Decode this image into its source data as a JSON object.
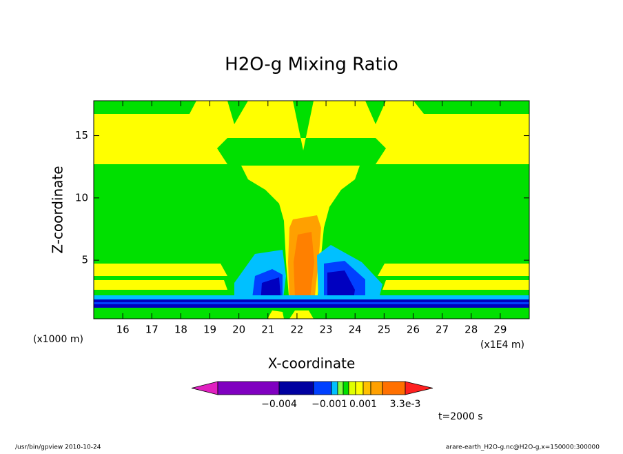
{
  "chart_data": {
    "type": "contour",
    "title": "H2O-g Mixing Ratio",
    "x_label": "X-coordinate",
    "y_label": "Z-coordinate",
    "x_unit": "(x1E4 m)",
    "y_unit": "(x1000 m)",
    "xlim": [
      15,
      30
    ],
    "xticks": [
      16,
      17,
      18,
      19,
      20,
      21,
      22,
      23,
      24,
      25,
      26,
      27,
      28,
      29
    ],
    "ylim": [
      0.3,
      17.8
    ],
    "yticks": [
      5,
      10,
      15
    ],
    "colorbar": {
      "colors": [
        "#e020c0",
        "#8000c0",
        "#0000a0",
        "#0040ff",
        "#00c0ff",
        "#80ff40",
        "#00e000",
        "#e0ff00",
        "#ffff00",
        "#ffc000",
        "#ffa000",
        "#ff7000",
        "#ff2020"
      ],
      "labels": [
        "−0.004",
        "−0.001",
        "0.001",
        "3.3e-3"
      ]
    },
    "annotation": "t=2000 s",
    "footer_left": "/usr/bin/gpview   2010-10-24",
    "footer_right": "arare-earth_H2O-g.nc@H2O-g,x=150000:300000"
  }
}
